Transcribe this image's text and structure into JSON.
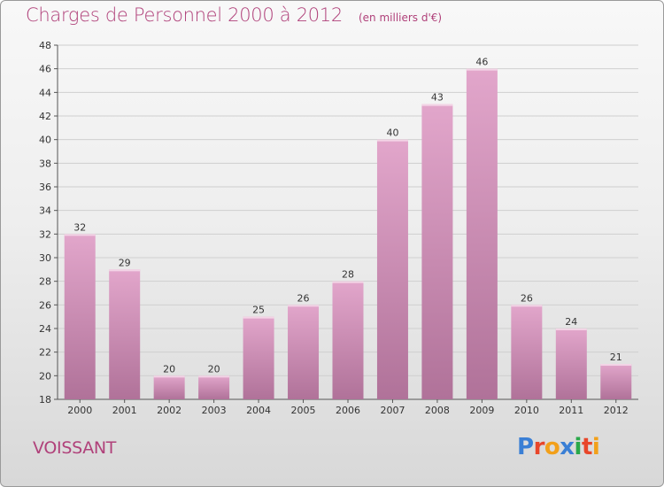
{
  "header": {
    "title": "Charges de Personnel 2000 à 2012",
    "subtitle": "(en milliers d'€)"
  },
  "footer": {
    "entity_name": "VOISSANT",
    "logo_text": "Proxiti",
    "logo_colors": [
      "#3a7fd5",
      "#e8462a",
      "#f2a01a",
      "#3a7fd5",
      "#2aa84a",
      "#e8462a",
      "#f2a01a"
    ]
  },
  "colors": {
    "bar_top": "#e2a6cb",
    "bar_bottom": "#b07299",
    "bar_edge": "#f3d4e6",
    "text_accent": "#b0417a"
  },
  "chart_data": {
    "type": "bar",
    "title": "Charges de Personnel 2000 à 2012",
    "subtitle": "(en milliers d'€)",
    "categories": [
      "2000",
      "2001",
      "2002",
      "2003",
      "2004",
      "2005",
      "2006",
      "2007",
      "2008",
      "2009",
      "2010",
      "2011",
      "2012"
    ],
    "values": [
      32,
      29,
      20,
      20,
      25,
      26,
      28,
      40,
      43,
      46,
      26,
      24,
      21
    ],
    "data_labels": [
      "32",
      "29",
      "20",
      "20",
      "25",
      "26",
      "28",
      "40",
      "43",
      "46",
      "26",
      "24",
      "21"
    ],
    "ylim": [
      18,
      48
    ],
    "yticks": [
      18,
      20,
      22,
      24,
      26,
      28,
      30,
      32,
      34,
      36,
      38,
      40,
      42,
      44,
      46,
      48
    ],
    "ytick_labels": [
      "18",
      "20",
      "22",
      "24",
      "26",
      "28",
      "30",
      "32",
      "34",
      "36",
      "38",
      "40",
      "42",
      "44",
      "46",
      "48"
    ],
    "grid": true,
    "xlabel": "",
    "ylabel": ""
  }
}
